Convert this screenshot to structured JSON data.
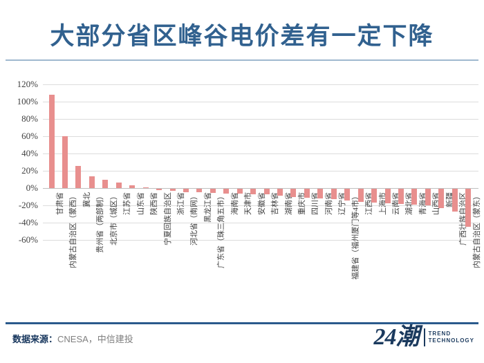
{
  "title": "大部分省区峰谷电价差有一定下降",
  "footer": {
    "source_label": "数据来源：",
    "source_value": "CNESA，中信建投",
    "logo_text": "24潮",
    "logo_sub1": "TREND",
    "logo_sub2": "TECHNOLOGY"
  },
  "colors": {
    "title": "#31618F",
    "title_rule": "#9FB8CF",
    "bar": "#E88F8E",
    "gridline": "#DCDCDC",
    "axis_line": "#BFBFBF",
    "axis_text": "#3F3F3F",
    "footer_rule": "#2A5A8C",
    "source_label": "#17365D",
    "source_value": "#7F7F7F",
    "logo": "#1B3A5E"
  },
  "chart_data": {
    "type": "bar",
    "title": "大部分省区峰谷电价差有一定下降",
    "categories": [
      "甘肃省",
      "内蒙古自治区（蒙西）",
      "冀北",
      "贵州省（两部制）",
      "北京市（城区）",
      "江苏省",
      "山东省",
      "陕西省",
      "宁夏回族自治区",
      "浙江省",
      "河北省（南网）",
      "黑龙江省",
      "广东省（珠三角五市）",
      "海南省",
      "天津市",
      "安徽省",
      "吉林省",
      "湖南省",
      "重庆市",
      "四川省",
      "河南省",
      "辽宁省",
      "福建省（福州厦门等4市）",
      "江西省",
      "上海市",
      "云南省",
      "湖北省",
      "青海省",
      "山西省",
      "新疆",
      "广西壮族自治区",
      "内蒙古自治区（蒙东）"
    ],
    "values": [
      108,
      60,
      25,
      13,
      9,
      6,
      3,
      0.5,
      -2,
      -3,
      -4,
      -4.5,
      -5,
      -5.5,
      -6,
      -6.5,
      -7,
      -8.5,
      -9.5,
      -10.5,
      -11.5,
      -12.5,
      -14,
      -15.5,
      -16.5,
      -17,
      -18,
      -19,
      -19.5,
      -22.5,
      -27,
      -44
    ],
    "xlabel": "",
    "ylabel": "",
    "ylim": [
      -60,
      120
    ],
    "ytick_step": 20,
    "ytick_format": "percent",
    "grid": true,
    "legend": false,
    "bar_color": "#E88F8E"
  }
}
